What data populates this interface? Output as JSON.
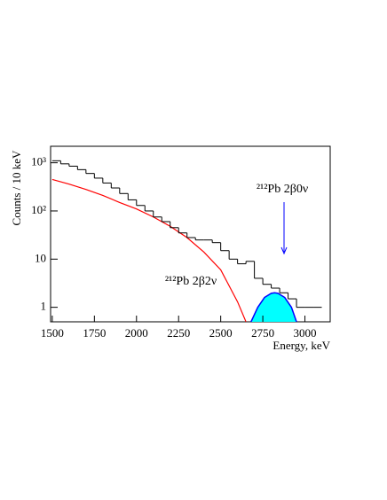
{
  "chart_data": {
    "type": "histogram",
    "xlabel": "Energy, keV",
    "ylabel": "Counts / 10 keV",
    "log_y": true,
    "color": "#000000",
    "bins": [
      1500,
      1550,
      1600,
      1650,
      1700,
      1750,
      1800,
      1850,
      1900,
      1950,
      2000,
      2050,
      2100,
      2150,
      2200,
      2250,
      2300,
      2350,
      2400,
      2450,
      2500,
      2550,
      2600,
      2650,
      2700,
      2750,
      2800,
      2850,
      2900,
      2950,
      3000,
      3050,
      3100
    ],
    "counts": [
      1100,
      950,
      850,
      720,
      600,
      480,
      380,
      300,
      230,
      170,
      130,
      100,
      75,
      60,
      45,
      35,
      28,
      25,
      25,
      22,
      15,
      10,
      8,
      9,
      4,
      3,
      2.5,
      2,
      1.5,
      1,
      1,
      1
    ],
    "series": [
      {
        "name": "²¹²Pb 2β2ν",
        "color": "#ff0000",
        "style": "line",
        "x": [
          1500,
          1600,
          1700,
          1800,
          1900,
          2000,
          2100,
          2200,
          2300,
          2400,
          2500,
          2600,
          2650
        ],
        "values": [
          450,
          360,
          280,
          210,
          150,
          110,
          75,
          48,
          28,
          14,
          6,
          1.3,
          0.5
        ]
      },
      {
        "name": "²¹²Pb 2β0ν",
        "color": "#0000ff",
        "fill": "#00ffff",
        "style": "area",
        "x": [
          2680,
          2720,
          2760,
          2800,
          2820,
          2840,
          2880,
          2920,
          2950
        ],
        "values": [
          0.5,
          1.0,
          1.6,
          1.95,
          2.0,
          1.95,
          1.6,
          1.0,
          0.5
        ]
      }
    ],
    "xlim": [
      1490,
      3150
    ],
    "ylim": [
      0.5,
      2200
    ],
    "xticks": [
      1500,
      1750,
      2000,
      2250,
      2500,
      2750,
      3000
    ],
    "yticks": [
      1,
      10,
      {
        "value": 100,
        "label": "10²"
      },
      {
        "value": 1000,
        "label": "10³"
      }
    ]
  }
}
